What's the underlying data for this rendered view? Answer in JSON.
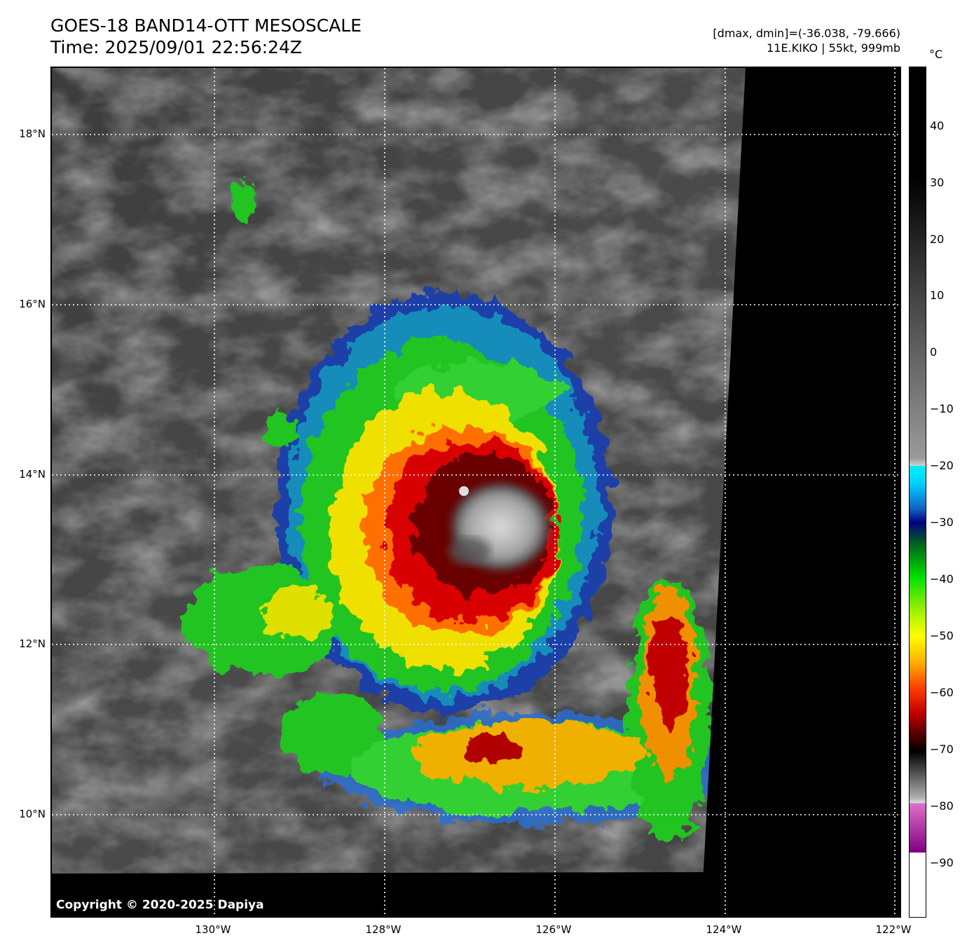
{
  "header": {
    "title_line1": "GOES-18 BAND14-OTT MESOSCALE",
    "title_line2": "Time: 2025/09/01 22:56:24Z",
    "range_text": "[dmax, dmin]=(-36.038, -79.666)",
    "storm_text": "11E.KIKO | 55kt, 999mb"
  },
  "map": {
    "lat_labels": [
      "18°N",
      "16°N",
      "14°N",
      "12°N",
      "10°N"
    ],
    "lon_labels": [
      "130°W",
      "128°W",
      "126°W",
      "124°W",
      "122°W"
    ],
    "copyright": "Copyright © 2020-2025 Dapiya"
  },
  "colorbar": {
    "unit": "°C",
    "ticks": [
      "40",
      "30",
      "20",
      "10",
      "0",
      "−10",
      "−20",
      "−30",
      "−40",
      "−50",
      "−60",
      "−70",
      "−80",
      "−90"
    ],
    "colors": {
      "warm_black": "#000000",
      "cold_gray_start": "#4d4d4d",
      "cyan": "#00e5ff",
      "blue": "#00007f",
      "green": "#00e000",
      "yellow": "#ffff00",
      "orange": "#ff8000",
      "red": "#e00000",
      "dark_red": "#600000",
      "magenta": "#e060d0",
      "purple": "#800080",
      "white": "#ffffff"
    }
  }
}
